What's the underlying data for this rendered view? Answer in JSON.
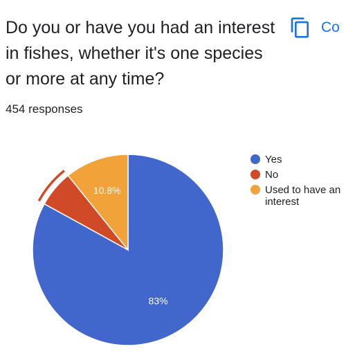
{
  "question": {
    "title": "Do you or have you had an interest in fishes, whether it's one species or more at any time?",
    "responses": "454 responses"
  },
  "toolbar": {
    "copy_label": "Co",
    "copy_icon": "copy-icon",
    "accent_color": "#1a73e8"
  },
  "chart_data": {
    "type": "pie",
    "title": "",
    "slices": [
      {
        "label": "Yes",
        "value": 83,
        "color": "#4267cc",
        "data_label": "83%"
      },
      {
        "label": "No",
        "value": 6.2,
        "color": "#d14a27",
        "data_label": "",
        "highlighted": true
      },
      {
        "label": "Used to have an interest",
        "value": 10.8,
        "color": "#f1a33a",
        "data_label": "10.8%"
      }
    ],
    "start_angle_deg": 90,
    "direction": "counterclockwise",
    "legend": {
      "position": "right",
      "entries": [
        "Yes",
        "No",
        "Used to have an interest"
      ]
    }
  }
}
